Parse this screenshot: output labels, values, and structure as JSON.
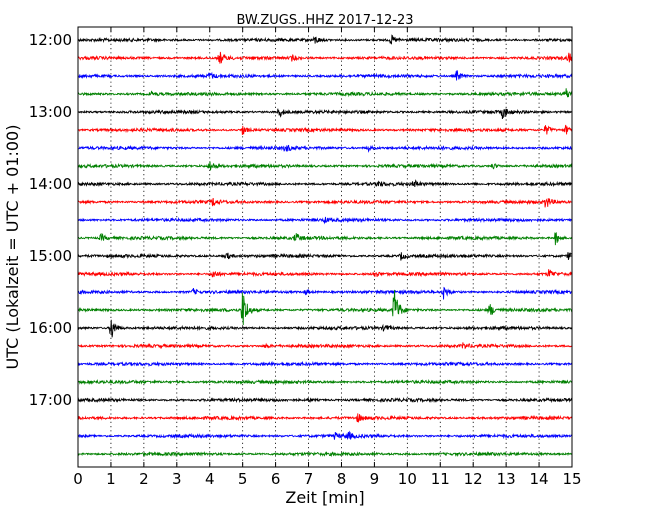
{
  "chart_data": {
    "type": "line",
    "title": "BW.ZUGS..HHZ 2017-12-23",
    "xlabel": "Zeit  [min]",
    "ylabel": "UTC (Lokalzeit = UTC + 01:00)",
    "xlim": [
      0,
      15
    ],
    "x_ticks": [
      "0",
      "1",
      "2",
      "3",
      "4",
      "5",
      "6",
      "7",
      "8",
      "9",
      "10",
      "11",
      "12",
      "13",
      "14",
      "15"
    ],
    "y_tick_labels": [
      "12:00",
      "13:00",
      "14:00",
      "15:00",
      "16:00",
      "17:00"
    ],
    "grid": "vertical dotted",
    "colors": [
      "#000000",
      "#ff0000",
      "#0000ff",
      "#008000"
    ],
    "traces": [
      {
        "start": "12:00",
        "color": "#000000",
        "events": [
          {
            "t": 7.2,
            "a": 4
          },
          {
            "t": 9.5,
            "a": 5
          }
        ]
      },
      {
        "start": "12:15",
        "color": "#ff0000",
        "events": [
          {
            "t": 4.3,
            "a": 7
          },
          {
            "t": 6.5,
            "a": 3
          },
          {
            "t": 14.9,
            "a": 5
          }
        ]
      },
      {
        "start": "12:30",
        "color": "#0000ff",
        "events": [
          {
            "t": 11.5,
            "a": 6
          },
          {
            "t": 4.0,
            "a": 3
          }
        ]
      },
      {
        "start": "12:45",
        "color": "#008000",
        "events": [
          {
            "t": 2.2,
            "a": 3
          },
          {
            "t": 14.8,
            "a": 7
          }
        ]
      },
      {
        "start": "13:00",
        "color": "#000000",
        "events": [
          {
            "t": 6.1,
            "a": 6
          },
          {
            "t": 12.9,
            "a": 7
          }
        ]
      },
      {
        "start": "13:15",
        "color": "#ff0000",
        "events": [
          {
            "t": 5.0,
            "a": 5
          },
          {
            "t": 14.2,
            "a": 6
          },
          {
            "t": 14.8,
            "a": 5
          }
        ]
      },
      {
        "start": "13:30",
        "color": "#0000ff",
        "events": [
          {
            "t": 6.3,
            "a": 4
          },
          {
            "t": 8.8,
            "a": 3
          }
        ]
      },
      {
        "start": "13:45",
        "color": "#008000",
        "events": [
          {
            "t": 4.0,
            "a": 6
          },
          {
            "t": 12.6,
            "a": 3
          }
        ]
      },
      {
        "start": "14:00",
        "color": "#000000",
        "events": [
          {
            "t": 9.1,
            "a": 3
          },
          {
            "t": 10.2,
            "a": 4
          }
        ]
      },
      {
        "start": "14:15",
        "color": "#ff0000",
        "events": [
          {
            "t": 4.1,
            "a": 4
          },
          {
            "t": 14.2,
            "a": 7
          }
        ]
      },
      {
        "start": "14:30",
        "color": "#0000ff",
        "events": [
          {
            "t": 7.5,
            "a": 2
          }
        ]
      },
      {
        "start": "14:45",
        "color": "#008000",
        "events": [
          {
            "t": 0.7,
            "a": 4
          },
          {
            "t": 6.6,
            "a": 5
          },
          {
            "t": 14.5,
            "a": 7
          }
        ]
      },
      {
        "start": "15:00",
        "color": "#000000",
        "events": [
          {
            "t": 4.5,
            "a": 4
          },
          {
            "t": 9.8,
            "a": 4
          },
          {
            "t": 14.9,
            "a": 5
          }
        ]
      },
      {
        "start": "15:15",
        "color": "#ff0000",
        "events": [
          {
            "t": 4.1,
            "a": 5
          },
          {
            "t": 9.0,
            "a": 4
          },
          {
            "t": 14.3,
            "a": 5
          }
        ]
      },
      {
        "start": "15:30",
        "color": "#0000ff",
        "events": [
          {
            "t": 11.1,
            "a": 7
          },
          {
            "t": 3.5,
            "a": 3
          },
          {
            "t": 6.9,
            "a": 3
          }
        ]
      },
      {
        "start": "15:45",
        "color": "#008000",
        "events": [
          {
            "t": 5.0,
            "a": 22
          },
          {
            "t": 9.6,
            "a": 24
          },
          {
            "t": 12.5,
            "a": 7
          }
        ]
      },
      {
        "start": "16:00",
        "color": "#000000",
        "events": [
          {
            "t": 1.0,
            "a": 14
          },
          {
            "t": 9.3,
            "a": 4
          }
        ]
      },
      {
        "start": "16:15",
        "color": "#ff0000",
        "events": [
          {
            "t": 5.7,
            "a": 2
          },
          {
            "t": 11.7,
            "a": 3
          }
        ]
      },
      {
        "start": "16:30",
        "color": "#0000ff",
        "events": []
      },
      {
        "start": "16:45",
        "color": "#008000",
        "events": []
      },
      {
        "start": "17:00",
        "color": "#000000",
        "events": [
          {
            "t": 7.0,
            "a": 2
          }
        ]
      },
      {
        "start": "17:15",
        "color": "#ff0000",
        "events": [
          {
            "t": 8.5,
            "a": 4
          }
        ]
      },
      {
        "start": "17:30",
        "color": "#0000ff",
        "events": [
          {
            "t": 7.8,
            "a": 3
          },
          {
            "t": 8.2,
            "a": 4
          }
        ]
      },
      {
        "start": "17:45",
        "color": "#008000",
        "events": []
      }
    ]
  }
}
